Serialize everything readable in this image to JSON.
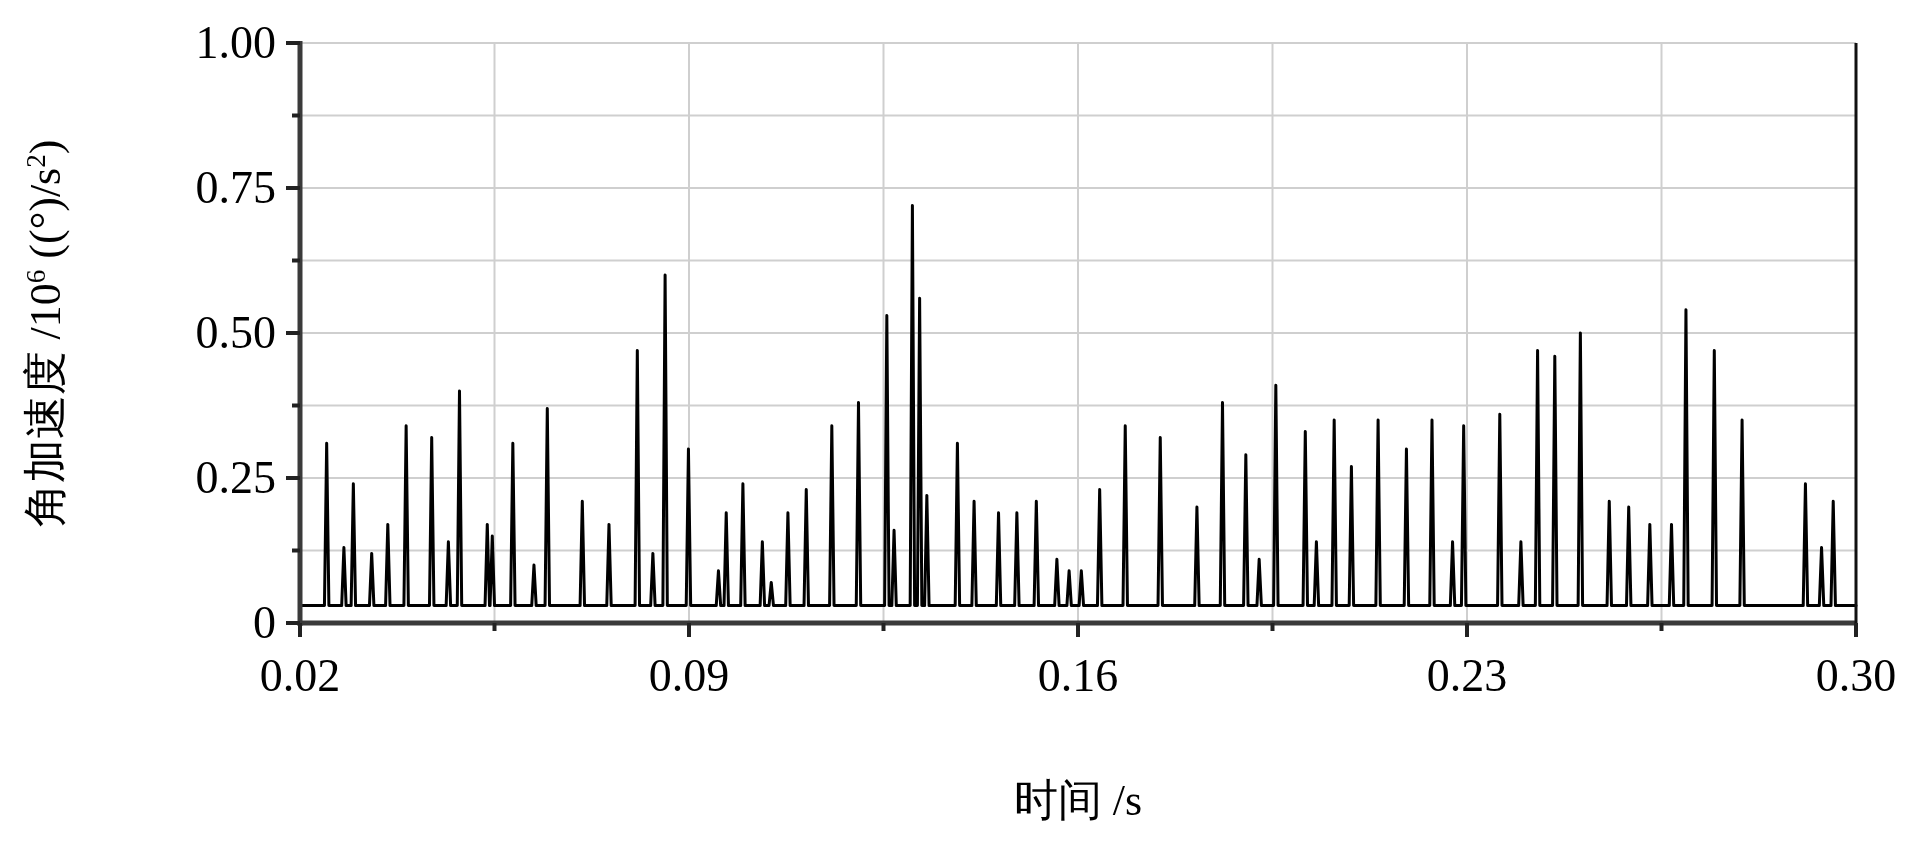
{
  "chart_data": {
    "type": "line",
    "xlabel": "时间 /s",
    "ylabel": "角加速度 /10$^{6}$ ((°)/s$^{2}$)",
    "color": "#000000",
    "grid": true,
    "xlim": [
      0.02,
      0.3
    ],
    "ylim": [
      0,
      1.0
    ],
    "xticks": [
      0.02,
      {
        "value": 0.055,
        "label": null
      },
      0.09,
      {
        "value": 0.125,
        "label": null
      },
      0.16,
      {
        "value": 0.195,
        "label": null
      },
      0.23,
      {
        "value": 0.265,
        "label": null
      },
      {
        "value": 0.3,
        "label": "0.30"
      }
    ],
    "yticks": [
      0,
      {
        "value": 0.125,
        "label": null
      },
      0.25,
      {
        "value": 0.375,
        "label": null
      },
      {
        "value": 0.5,
        "label": "0.50"
      },
      {
        "value": 0.625,
        "label": null
      },
      0.75,
      {
        "value": 0.875,
        "label": null
      },
      {
        "value": 1.0,
        "label": "1.00"
      }
    ],
    "x": [
      0.02,
      0.0244,
      0.0248,
      0.0252,
      0.0275,
      0.0279,
      0.0283,
      0.0292,
      0.0296,
      0.03,
      0.0325,
      0.0329,
      0.0333,
      0.0354,
      0.0358,
      0.0362,
      0.0387,
      0.0391,
      0.0395,
      0.0433,
      0.0437,
      0.0441,
      0.0463,
      0.0467,
      0.0471,
      0.0483,
      0.0487,
      0.0491,
      0.0533,
      0.0537,
      0.0541,
      0.0542,
      0.0546,
      0.055,
      0.0579,
      0.0583,
      0.0587,
      0.0617,
      0.0621,
      0.0625,
      0.0641,
      0.0645,
      0.0649,
      0.0704,
      0.0708,
      0.0712,
      0.0752,
      0.0756,
      0.076,
      0.0803,
      0.0807,
      0.0811,
      0.0831,
      0.0835,
      0.0839,
      0.0853,
      0.0857,
      0.0861,
      0.0895,
      0.0899,
      0.0903,
      0.0949,
      0.0953,
      0.0957,
      0.0963,
      0.0967,
      0.0971,
      0.0993,
      0.0997,
      0.1001,
      0.1028,
      0.1032,
      0.1036,
      0.1044,
      0.1048,
      0.1052,
      0.1074,
      0.1078,
      0.1082,
      0.1107,
      0.1111,
      0.1115,
      0.1153,
      0.1157,
      0.1161,
      0.1201,
      0.1205,
      0.1209,
      0.1252,
      0.1256,
      0.126,
      0.1265,
      0.1269,
      0.1273,
      0.1298,
      0.1302,
      0.1306,
      0.1311,
      0.1315,
      0.1319,
      0.1324,
      0.1328,
      0.1332,
      0.1379,
      0.1383,
      0.1387,
      0.1409,
      0.1413,
      0.1417,
      0.1453,
      0.1457,
      0.1461,
      0.1486,
      0.149,
      0.1494,
      0.1521,
      0.1525,
      0.1529,
      0.1558,
      0.1562,
      0.1566,
      0.158,
      0.1584,
      0.1588,
      0.1602,
      0.1606,
      0.161,
      0.1635,
      0.1639,
      0.1643,
      0.1681,
      0.1685,
      0.1689,
      0.1744,
      0.1748,
      0.1752,
      0.181,
      0.1814,
      0.1818,
      0.1856,
      0.186,
      0.1864,
      0.1898,
      0.1902,
      0.1906,
      0.1922,
      0.1926,
      0.193,
      0.1952,
      0.1956,
      0.196,
      0.2005,
      0.2009,
      0.2013,
      0.2025,
      0.2029,
      0.2033,
      0.2057,
      0.2061,
      0.2065,
      0.2088,
      0.2092,
      0.2096,
      0.2136,
      0.214,
      0.2144,
      0.2187,
      0.2191,
      0.2195,
      0.2233,
      0.2237,
      0.2241,
      0.227,
      0.2274,
      0.2278,
      0.229,
      0.2294,
      0.2298,
      0.2355,
      0.2359,
      0.2363,
      0.2393,
      0.2397,
      0.2401,
      0.2423,
      0.2427,
      0.2431,
      0.2454,
      0.2458,
      0.2462,
      0.25,
      0.2504,
      0.2508,
      0.2552,
      0.2556,
      0.256,
      0.2587,
      0.2591,
      0.2595,
      0.2625,
      0.2629,
      0.2633,
      0.2664,
      0.2668,
      0.2672,
      0.269,
      0.2694,
      0.2698,
      0.2741,
      0.2745,
      0.2749,
      0.2791,
      0.2795,
      0.2799,
      0.2905,
      0.2909,
      0.2913,
      0.2934,
      0.2938,
      0.2942,
      0.2955,
      0.2959,
      0.2963,
      0.3
    ],
    "values": [
      0.03,
      0.03,
      0.31,
      0.03,
      0.03,
      0.13,
      0.03,
      0.03,
      0.24,
      0.03,
      0.03,
      0.12,
      0.03,
      0.03,
      0.17,
      0.03,
      0.03,
      0.34,
      0.03,
      0.03,
      0.32,
      0.03,
      0.03,
      0.14,
      0.03,
      0.03,
      0.4,
      0.03,
      0.03,
      0.17,
      0.03,
      0.03,
      0.15,
      0.03,
      0.03,
      0.31,
      0.03,
      0.03,
      0.1,
      0.03,
      0.03,
      0.37,
      0.03,
      0.03,
      0.21,
      0.03,
      0.03,
      0.17,
      0.03,
      0.03,
      0.47,
      0.03,
      0.03,
      0.12,
      0.03,
      0.03,
      0.6,
      0.03,
      0.03,
      0.3,
      0.03,
      0.03,
      0.09,
      0.03,
      0.03,
      0.19,
      0.03,
      0.03,
      0.24,
      0.03,
      0.03,
      0.14,
      0.03,
      0.03,
      0.07,
      0.03,
      0.03,
      0.19,
      0.03,
      0.03,
      0.23,
      0.03,
      0.03,
      0.34,
      0.03,
      0.03,
      0.38,
      0.03,
      0.03,
      0.53,
      0.03,
      0.03,
      0.16,
      0.03,
      0.03,
      0.72,
      0.03,
      0.03,
      0.56,
      0.03,
      0.03,
      0.22,
      0.03,
      0.03,
      0.31,
      0.03,
      0.03,
      0.21,
      0.03,
      0.03,
      0.19,
      0.03,
      0.03,
      0.19,
      0.03,
      0.03,
      0.21,
      0.03,
      0.03,
      0.11,
      0.03,
      0.03,
      0.09,
      0.03,
      0.03,
      0.09,
      0.03,
      0.03,
      0.23,
      0.03,
      0.03,
      0.34,
      0.03,
      0.03,
      0.32,
      0.03,
      0.03,
      0.2,
      0.03,
      0.03,
      0.38,
      0.03,
      0.03,
      0.29,
      0.03,
      0.03,
      0.11,
      0.03,
      0.03,
      0.41,
      0.03,
      0.03,
      0.33,
      0.03,
      0.03,
      0.14,
      0.03,
      0.03,
      0.35,
      0.03,
      0.03,
      0.27,
      0.03,
      0.03,
      0.35,
      0.03,
      0.03,
      0.3,
      0.03,
      0.03,
      0.35,
      0.03,
      0.03,
      0.14,
      0.03,
      0.03,
      0.34,
      0.03,
      0.03,
      0.36,
      0.03,
      0.03,
      0.14,
      0.03,
      0.03,
      0.47,
      0.03,
      0.03,
      0.46,
      0.03,
      0.03,
      0.5,
      0.03,
      0.03,
      0.21,
      0.03,
      0.03,
      0.2,
      0.03,
      0.03,
      0.17,
      0.03,
      0.03,
      0.17,
      0.03,
      0.03,
      0.54,
      0.03,
      0.03,
      0.47,
      0.03,
      0.03,
      0.35,
      0.03,
      0.03,
      0.24,
      0.03,
      0.03,
      0.13,
      0.03,
      0.03,
      0.21,
      0.03,
      0.03
    ]
  }
}
